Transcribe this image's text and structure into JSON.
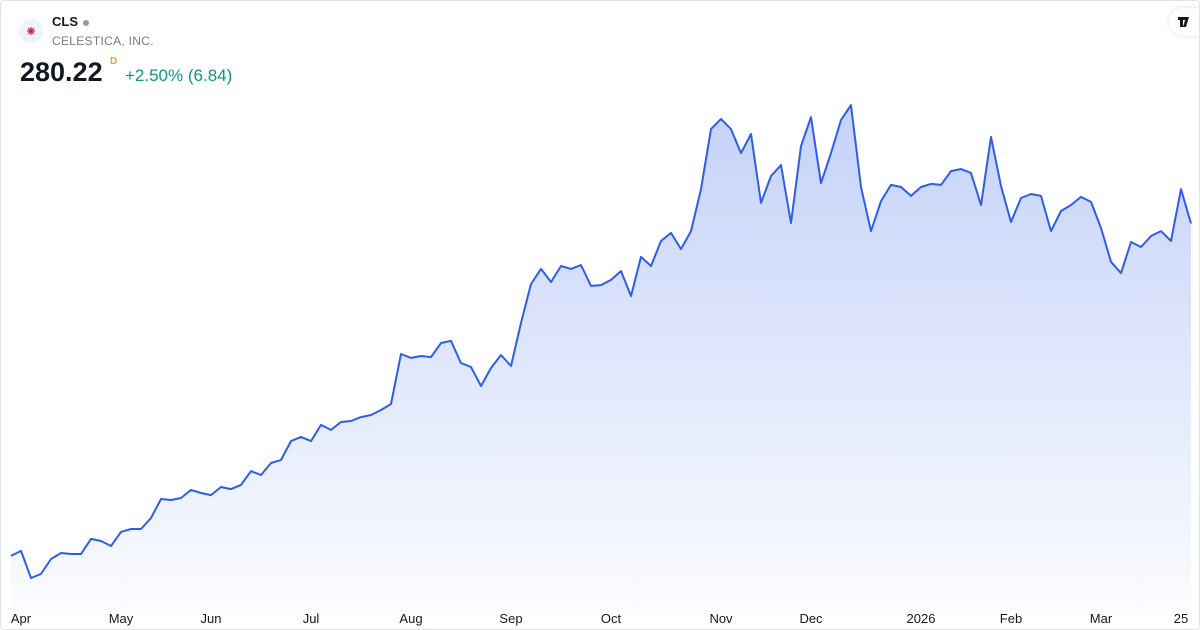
{
  "header": {
    "symbol": "CLS",
    "name": "CELESTICA, INC.",
    "price": "280.22",
    "interval_flag": "D",
    "change": "+2.50% (6.84)"
  },
  "chart_data": {
    "type": "area",
    "color": "#2e5ee8",
    "categories": [
      null,
      "Apr",
      null,
      null,
      null,
      null,
      null,
      null,
      null,
      null,
      null,
      "May",
      null,
      null,
      null,
      null,
      null,
      null,
      null,
      null,
      "Jun",
      null,
      null,
      null,
      null,
      null,
      null,
      null,
      null,
      null,
      "Jul",
      null,
      null,
      null,
      null,
      null,
      null,
      null,
      null,
      null,
      "Aug",
      null,
      null,
      null,
      null,
      null,
      null,
      null,
      null,
      null,
      "Sep",
      null,
      null,
      null,
      null,
      null,
      null,
      null,
      null,
      null,
      "Oct",
      null,
      null,
      null,
      null,
      null,
      null,
      null,
      null,
      null,
      null,
      "Nov",
      null,
      null,
      null,
      null,
      null,
      null,
      null,
      null,
      "Dec",
      null,
      null,
      null,
      null,
      null,
      null,
      null,
      null,
      null,
      null,
      "2026",
      null,
      null,
      null,
      null,
      null,
      null,
      null,
      null,
      "Feb",
      null,
      null,
      null,
      null,
      null,
      null,
      null,
      null,
      "Mar",
      null,
      null,
      null,
      null,
      null,
      null,
      null,
      "25",
      null
    ],
    "values": [
      86.3,
      89.2,
      73.4,
      75.8,
      84.5,
      88.0,
      87.4,
      87.4,
      96.2,
      95.0,
      92.1,
      100.3,
      102.0,
      102.0,
      108.4,
      119.5,
      118.9,
      120.1,
      124.8,
      123.0,
      121.8,
      126.5,
      125.3,
      127.7,
      135.8,
      133.5,
      140.5,
      142.3,
      153.3,
      155.7,
      153.3,
      162.7,
      159.8,
      164.4,
      165.0,
      167.3,
      168.5,
      171.4,
      174.9,
      204.1,
      201.8,
      202.9,
      202.3,
      210.5,
      211.7,
      198.8,
      196.5,
      185.4,
      195.9,
      203.5,
      197.1,
      222.2,
      244.9,
      253.7,
      246.1,
      255.4,
      253.7,
      256.0,
      243.8,
      244.3,
      247.3,
      252.5,
      237.9,
      260.7,
      255.4,
      270.0,
      274.7,
      265.3,
      275.8,
      300.3,
      335.3,
      341.2,
      335.3,
      321.3,
      332.4,
      292.2,
      307.9,
      314.3,
      280.5,
      325.4,
      342.3,
      303.8,
      321.3,
      340.6,
      349.3,
      301.5,
      275.8,
      293.3,
      302.7,
      301.5,
      296.3,
      301.5,
      303.3,
      302.7,
      310.8,
      312.0,
      309.7,
      291.0,
      330.7,
      302.1,
      281.1,
      295.1,
      297.4,
      296.3,
      275.8,
      287.5,
      291.0,
      295.7,
      292.8,
      277.6,
      257.8,
      251.3,
      269.4,
      266.5,
      272.9,
      275.8,
      270.0,
      300.3,
      280.22
    ],
    "ylim": [
      60,
      410
    ]
  }
}
